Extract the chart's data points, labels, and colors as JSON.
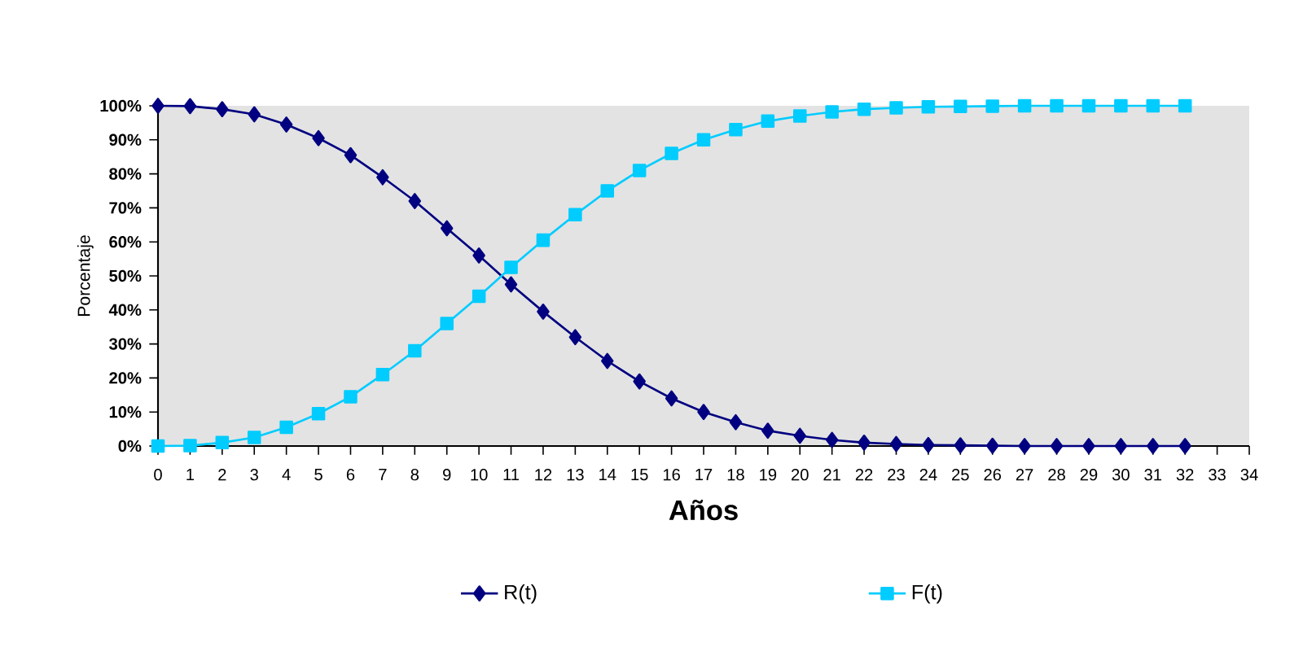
{
  "chart_data": {
    "type": "line",
    "xlabel": "Años",
    "ylabel": "Porcentaje",
    "x": [
      0,
      1,
      2,
      3,
      4,
      5,
      6,
      7,
      8,
      9,
      10,
      11,
      12,
      13,
      14,
      15,
      16,
      17,
      18,
      19,
      20,
      21,
      22,
      23,
      24,
      25,
      26,
      27,
      28,
      29,
      30,
      31,
      32
    ],
    "xlim": [
      0,
      34
    ],
    "xticks": [
      0,
      1,
      2,
      3,
      4,
      5,
      6,
      7,
      8,
      9,
      10,
      11,
      12,
      13,
      14,
      15,
      16,
      17,
      18,
      19,
      20,
      21,
      22,
      23,
      24,
      25,
      26,
      27,
      28,
      29,
      30,
      31,
      32,
      33,
      34
    ],
    "ylim": [
      0,
      100
    ],
    "yticks": [
      {
        "value": 0,
        "label": "0%"
      },
      {
        "value": 10,
        "label": "10%"
      },
      {
        "value": 20,
        "label": "20%"
      },
      {
        "value": 30,
        "label": "30%"
      },
      {
        "value": 40,
        "label": "40%"
      },
      {
        "value": 50,
        "label": "50%"
      },
      {
        "value": 60,
        "label": "60%"
      },
      {
        "value": 70,
        "label": "70%"
      },
      {
        "value": 80,
        "label": "80%"
      },
      {
        "value": 90,
        "label": "90%"
      },
      {
        "value": 100,
        "label": "100%"
      }
    ],
    "series": [
      {
        "name": "R(t)",
        "color": "#000080",
        "marker": "diamond",
        "values": [
          100,
          99.9,
          99,
          97.5,
          94.5,
          90.5,
          85.5,
          79,
          72,
          64,
          56,
          47.5,
          39.5,
          32,
          25,
          19,
          14,
          10,
          7,
          4.5,
          3,
          1.8,
          1,
          0.6,
          0.3,
          0.2,
          0.1,
          0,
          0,
          0,
          0,
          0,
          0
        ]
      },
      {
        "name": "F(t)",
        "color": "#00ccff",
        "marker": "square",
        "values": [
          0,
          0.1,
          1,
          2.5,
          5.5,
          9.5,
          14.5,
          21,
          28,
          36,
          44,
          52.5,
          60.5,
          68,
          75,
          81,
          86,
          90,
          93,
          95.5,
          97,
          98.2,
          99,
          99.4,
          99.7,
          99.8,
          99.9,
          100,
          100,
          100,
          100,
          100,
          100
        ]
      }
    ],
    "grid": false,
    "legend": "bottom"
  }
}
